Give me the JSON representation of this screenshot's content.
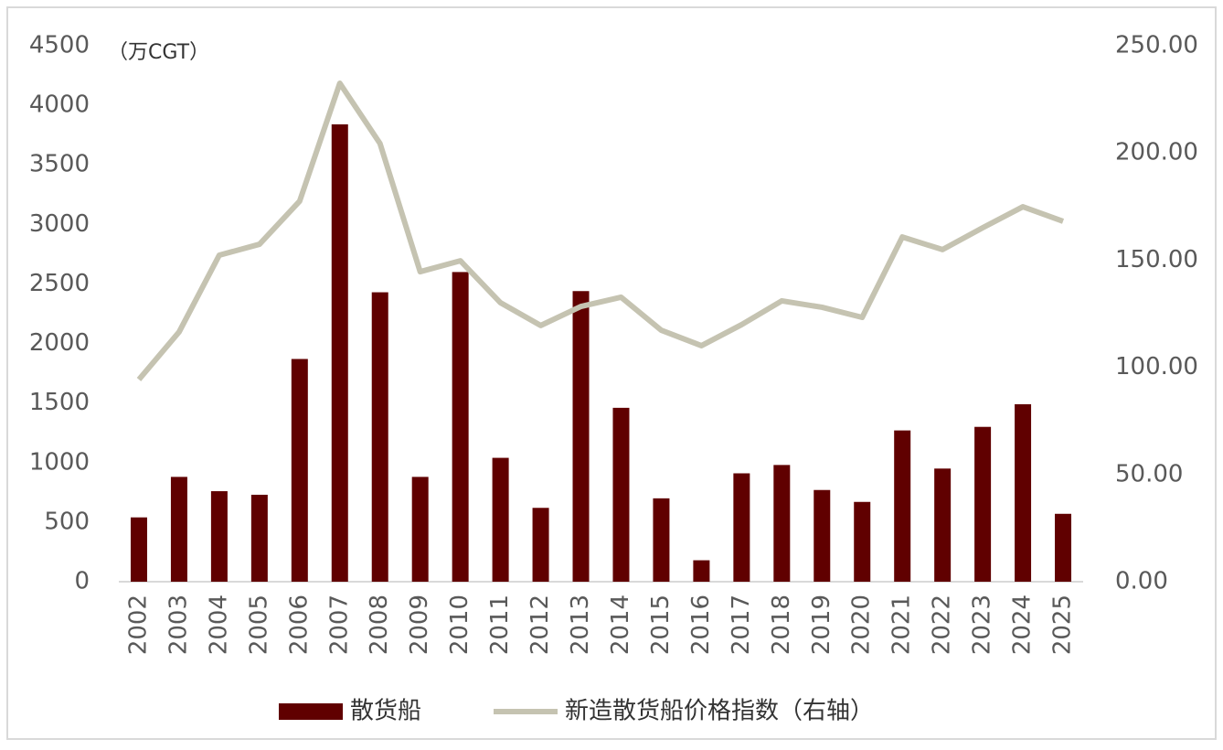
{
  "chart_data": {
    "type": "bar-line",
    "unit_label": "（万CGT）",
    "categories": [
      "2002",
      "2003",
      "2004",
      "2005",
      "2006",
      "2007",
      "2008",
      "2009",
      "2010",
      "2011",
      "2012",
      "2013",
      "2014",
      "2015",
      "2016",
      "2017",
      "2018",
      "2019",
      "2020",
      "2021",
      "2022",
      "2023",
      "2024",
      "2025"
    ],
    "series": [
      {
        "name": "散货船",
        "type": "bar",
        "color": "#600000",
        "values": [
          540,
          880,
          760,
          730,
          1870,
          3840,
          2430,
          880,
          2600,
          1040,
          620,
          2440,
          1460,
          700,
          180,
          910,
          980,
          770,
          670,
          1270,
          950,
          1300,
          1490,
          570
        ]
      },
      {
        "name": "新造散货船价格指数（右轴）",
        "type": "line",
        "axis": "y2",
        "color": "#c5c3b1",
        "values": [
          94.3,
          116.5,
          152.3,
          157.4,
          177.5,
          232.5,
          204.4,
          144.6,
          149.7,
          130.1,
          119.5,
          128.4,
          132.7,
          117.3,
          110.1,
          119.9,
          131,
          128,
          123.3,
          160.8,
          154.9,
          165.1,
          174.9,
          168.1
        ]
      }
    ],
    "ylim": [
      0,
      4500
    ],
    "yticks": [
      0,
      500,
      1000,
      1500,
      2000,
      2500,
      3000,
      3500,
      4000,
      4500
    ],
    "y2lim": [
      0,
      250
    ],
    "y2ticks": [
      {
        "value": 0,
        "label": "0.00"
      },
      {
        "value": 50,
        "label": "50.00"
      },
      {
        "value": 100,
        "label": "100.00"
      },
      {
        "value": 150,
        "label": "150.00"
      },
      {
        "value": 200,
        "label": "200.00"
      },
      {
        "value": 250,
        "label": "250.00"
      }
    ],
    "legend": "bottom"
  }
}
